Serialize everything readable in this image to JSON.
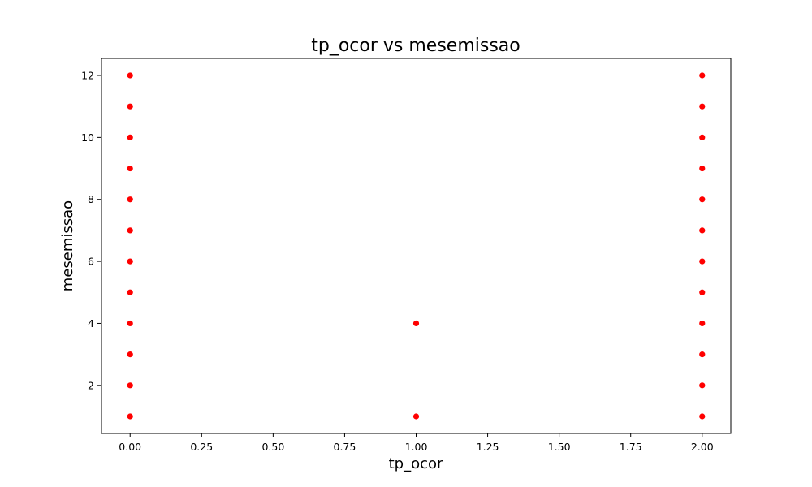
{
  "chart_data": {
    "type": "scatter",
    "title": "tp_ocor vs mesemissao",
    "xlabel": "tp_ocor",
    "ylabel": "mesemissao",
    "xlim": [
      -0.1,
      2.1
    ],
    "ylim": [
      0.45,
      12.55
    ],
    "xticks": [
      0.0,
      0.25,
      0.5,
      0.75,
      1.0,
      1.25,
      1.5,
      1.75,
      2.0
    ],
    "xtick_labels": [
      "0.00",
      "0.25",
      "0.50",
      "0.75",
      "1.00",
      "1.25",
      "1.50",
      "1.75",
      "2.00"
    ],
    "yticks": [
      2,
      4,
      6,
      8,
      10,
      12
    ],
    "ytick_labels": [
      "2",
      "4",
      "6",
      "8",
      "10",
      "12"
    ],
    "grid": false,
    "legend": "none",
    "marker_color": "#ff0000",
    "series": [
      {
        "points": [
          [
            0,
            1
          ],
          [
            0,
            2
          ],
          [
            0,
            3
          ],
          [
            0,
            4
          ],
          [
            0,
            5
          ],
          [
            0,
            6
          ],
          [
            0,
            7
          ],
          [
            0,
            8
          ],
          [
            0,
            9
          ],
          [
            0,
            10
          ],
          [
            0,
            11
          ],
          [
            0,
            12
          ],
          [
            1,
            1
          ],
          [
            1,
            4
          ],
          [
            2,
            1
          ],
          [
            2,
            2
          ],
          [
            2,
            3
          ],
          [
            2,
            4
          ],
          [
            2,
            5
          ],
          [
            2,
            6
          ],
          [
            2,
            7
          ],
          [
            2,
            8
          ],
          [
            2,
            9
          ],
          [
            2,
            10
          ],
          [
            2,
            11
          ],
          [
            2,
            12
          ]
        ]
      }
    ]
  }
}
